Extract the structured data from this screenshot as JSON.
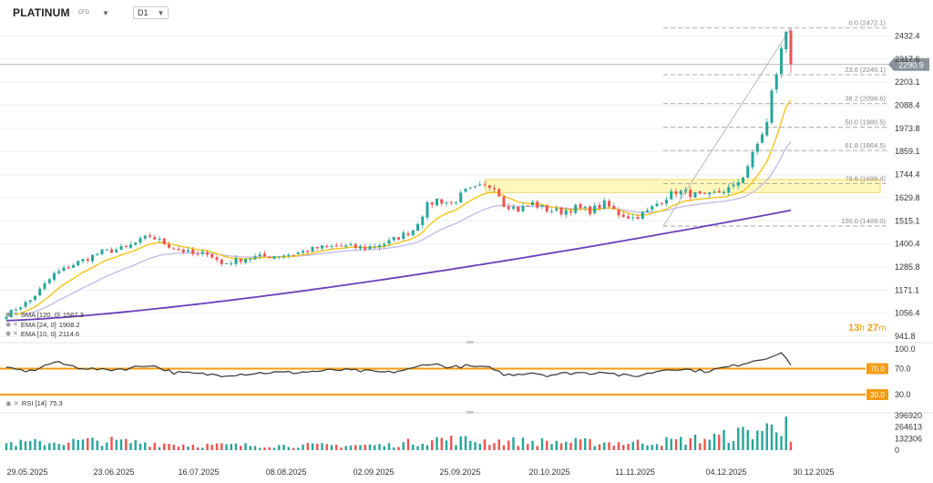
{
  "header": {
    "symbol": "PLATINUM",
    "instrument_type": "CFD",
    "timeframe": "D1"
  },
  "icons": {
    "dropdown": "chevron-down-icon",
    "indicator_toggle": "eye-icon"
  },
  "colors": {
    "up": "#26a69a",
    "down": "#ef5350",
    "ema10": "#f5c518",
    "ema24": "#c7bde8",
    "sma120": "#6a3fb8",
    "rsi_line": "#333333",
    "rsi_level": "#f39c12",
    "fib": "#999999",
    "zone_fill": "#fff6b0",
    "zone_border": "#e8d25a",
    "price_tag": "#8a939b"
  },
  "legend": [
    {
      "label": "SMA [120, 0]",
      "value": "1567.3",
      "color": "#6a3fb8"
    },
    {
      "label": "EMA [24, 0]",
      "value": "1908.2",
      "color": "#c7bde8"
    },
    {
      "label": "EMA [10, 0]",
      "value": "2114.6",
      "color": "#f5c518"
    }
  ],
  "rsi_label": {
    "name": "RSI [14]",
    "value": "75.3"
  },
  "timer": {
    "hours": "13",
    "h_unit": "h",
    "minutes": "27",
    "m_unit": "m"
  },
  "current_price": "2290.9",
  "chart_data": {
    "type": "candlestick",
    "x_tick_labels": [
      "29.05.2025",
      "23.06.2025",
      "16.07.2025",
      "08.08.2025",
      "02.09.2025",
      "25.09.2025",
      "20.10.2025",
      "11.11.2025",
      "04.12.2025",
      "30.12.2025"
    ],
    "y_tick_labels": [
      "2432.4",
      "2317.6",
      "2203.1",
      "2088.4",
      "1973.8",
      "1859.1",
      "1744.4",
      "1629.8",
      "1515.1",
      "1400.4",
      "1285.8",
      "1171.1",
      "1056.4",
      "941.8"
    ],
    "ylim": [
      941.8,
      2480
    ],
    "fibonacci": [
      {
        "ratio": "0.0",
        "value": 2472.1,
        "label": "0.0 (2472.1)"
      },
      {
        "ratio": "23.6",
        "value": 2240.1,
        "label": "23.6 (2240.1)"
      },
      {
        "ratio": "38.2",
        "value": 2096.6,
        "label": "38.2 (2096.6)"
      },
      {
        "ratio": "50.0",
        "value": 1980.5,
        "label": "50.0 (1980.5)"
      },
      {
        "ratio": "61.8",
        "value": 1864.5,
        "label": "61.8 (1864.5)"
      },
      {
        "ratio": "78.6",
        "value": 1699.4,
        "label": "78.6 (1699.4)"
      },
      {
        "ratio": "100.0",
        "value": 1489.0,
        "label": "100.0 (1489.0)"
      }
    ],
    "resistance_zone": {
      "low": 1655,
      "high": 1720
    },
    "anchors": [
      [
        0,
        1050
      ],
      [
        5,
        1120
      ],
      [
        10,
        1250
      ],
      [
        15,
        1310
      ],
      [
        20,
        1360
      ],
      [
        25,
        1380
      ],
      [
        30,
        1440
      ],
      [
        35,
        1380
      ],
      [
        40,
        1340
      ],
      [
        42,
        1360
      ],
      [
        45,
        1300
      ],
      [
        50,
        1330
      ],
      [
        55,
        1340
      ],
      [
        60,
        1350
      ],
      [
        65,
        1380
      ],
      [
        70,
        1390
      ],
      [
        75,
        1380
      ],
      [
        80,
        1410
      ],
      [
        85,
        1470
      ],
      [
        88,
        1590
      ],
      [
        90,
        1620
      ],
      [
        93,
        1600
      ],
      [
        96,
        1660
      ],
      [
        99,
        1680
      ],
      [
        102,
        1690
      ],
      [
        104,
        1600
      ],
      [
        107,
        1570
      ],
      [
        110,
        1600
      ],
      [
        113,
        1570
      ],
      [
        116,
        1560
      ],
      [
        119,
        1580
      ],
      [
        122,
        1565
      ],
      [
        125,
        1600
      ],
      [
        128,
        1550
      ],
      [
        131,
        1530
      ],
      [
        134,
        1560
      ],
      [
        137,
        1620
      ],
      [
        140,
        1660
      ],
      [
        143,
        1650
      ],
      [
        146,
        1630
      ],
      [
        149,
        1660
      ],
      [
        152,
        1680
      ],
      [
        154,
        1740
      ],
      [
        156,
        1840
      ],
      [
        158,
        1950
      ],
      [
        159,
        2000
      ],
      [
        160,
        2150
      ],
      [
        161,
        2250
      ],
      [
        162,
        2360
      ],
      [
        163,
        2450
      ],
      [
        164,
        2290.9
      ]
    ],
    "ema10_last": 2114.6,
    "ema24_last": 1908.2,
    "sma120_last": 1567.3,
    "rsi": {
      "levels": [
        70.0,
        30.0
      ],
      "level_labels": [
        "70.0",
        "30.0"
      ],
      "tick_labels": [
        "100.0",
        "70.0",
        "30.0"
      ],
      "last": 75.3,
      "ylim": [
        20,
        100
      ],
      "anchors": [
        [
          0,
          70
        ],
        [
          5,
          66
        ],
        [
          10,
          80
        ],
        [
          15,
          72
        ],
        [
          20,
          68
        ],
        [
          25,
          70
        ],
        [
          30,
          76
        ],
        [
          35,
          64
        ],
        [
          40,
          62
        ],
        [
          45,
          60
        ],
        [
          50,
          62
        ],
        [
          55,
          64
        ],
        [
          60,
          64
        ],
        [
          65,
          66
        ],
        [
          70,
          68
        ],
        [
          75,
          66
        ],
        [
          80,
          64
        ],
        [
          85,
          70
        ],
        [
          88,
          78
        ],
        [
          90,
          76
        ],
        [
          93,
          72
        ],
        [
          96,
          74
        ],
        [
          99,
          72
        ],
        [
          102,
          70
        ],
        [
          104,
          60
        ],
        [
          107,
          62
        ],
        [
          110,
          64
        ],
        [
          113,
          60
        ],
        [
          116,
          62
        ],
        [
          119,
          64
        ],
        [
          122,
          63
        ],
        [
          125,
          66
        ],
        [
          128,
          60
        ],
        [
          131,
          58
        ],
        [
          134,
          62
        ],
        [
          137,
          68
        ],
        [
          140,
          70
        ],
        [
          143,
          68
        ],
        [
          146,
          66
        ],
        [
          149,
          70
        ],
        [
          152,
          74
        ],
        [
          154,
          78
        ],
        [
          156,
          82
        ],
        [
          158,
          85
        ],
        [
          160,
          90
        ],
        [
          162,
          92
        ],
        [
          163,
          88
        ],
        [
          164,
          75.3
        ]
      ]
    },
    "volume": {
      "tick_labels": [
        "396920",
        "264613",
        "132306",
        "0"
      ],
      "ylim": [
        0,
        396920
      ],
      "anchors": [
        [
          0,
          80000
        ],
        [
          20,
          110000
        ],
        [
          40,
          60000
        ],
        [
          60,
          55000
        ],
        [
          80,
          60000
        ],
        [
          90,
          130000
        ],
        [
          100,
          110000
        ],
        [
          110,
          100000
        ],
        [
          120,
          95000
        ],
        [
          130,
          85000
        ],
        [
          140,
          110000
        ],
        [
          150,
          160000
        ],
        [
          156,
          220000
        ],
        [
          160,
          260000
        ],
        [
          162,
          300000
        ],
        [
          163,
          380000
        ],
        [
          164,
          95000
        ]
      ]
    }
  }
}
